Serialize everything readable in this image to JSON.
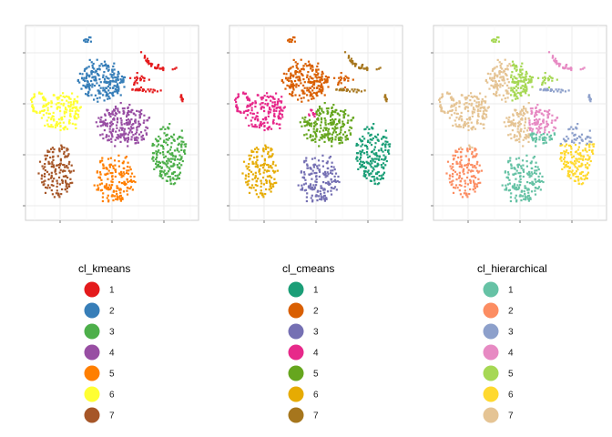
{
  "chart_data": [
    {
      "type": "scatter",
      "legend_title": "cl_kmeans",
      "legend_position": "bottom",
      "grid": true,
      "tick_labels": false,
      "series": [
        {
          "name": "1",
          "color": "#E41A1C"
        },
        {
          "name": "2",
          "color": "#377EB8"
        },
        {
          "name": "3",
          "color": "#4DAF4A"
        },
        {
          "name": "4",
          "color": "#984EA3"
        },
        {
          "name": "5",
          "color": "#FF7F00"
        },
        {
          "name": "6",
          "color": "#FFFF33"
        },
        {
          "name": "7",
          "color": "#A65628"
        }
      ]
    },
    {
      "type": "scatter",
      "legend_title": "cl_cmeans",
      "legend_position": "bottom",
      "grid": true,
      "tick_labels": false,
      "series": [
        {
          "name": "1",
          "color": "#1B9E77"
        },
        {
          "name": "2",
          "color": "#D95F02"
        },
        {
          "name": "3",
          "color": "#7570B3"
        },
        {
          "name": "4",
          "color": "#E7298A"
        },
        {
          "name": "5",
          "color": "#66A61E"
        },
        {
          "name": "6",
          "color": "#E6AB02"
        },
        {
          "name": "7",
          "color": "#A6761D"
        }
      ]
    },
    {
      "type": "scatter",
      "legend_title": "cl_hierarchical",
      "legend_position": "bottom",
      "grid": true,
      "tick_labels": false,
      "series": [
        {
          "name": "1",
          "color": "#66C2A5"
        },
        {
          "name": "2",
          "color": "#FC8D62"
        },
        {
          "name": "3",
          "color": "#8DA0CB"
        },
        {
          "name": "4",
          "color": "#E78AC3"
        },
        {
          "name": "5",
          "color": "#A6D854"
        },
        {
          "name": "6",
          "color": "#FFD92F"
        },
        {
          "name": "7",
          "color": "#E5C494"
        }
      ]
    }
  ]
}
